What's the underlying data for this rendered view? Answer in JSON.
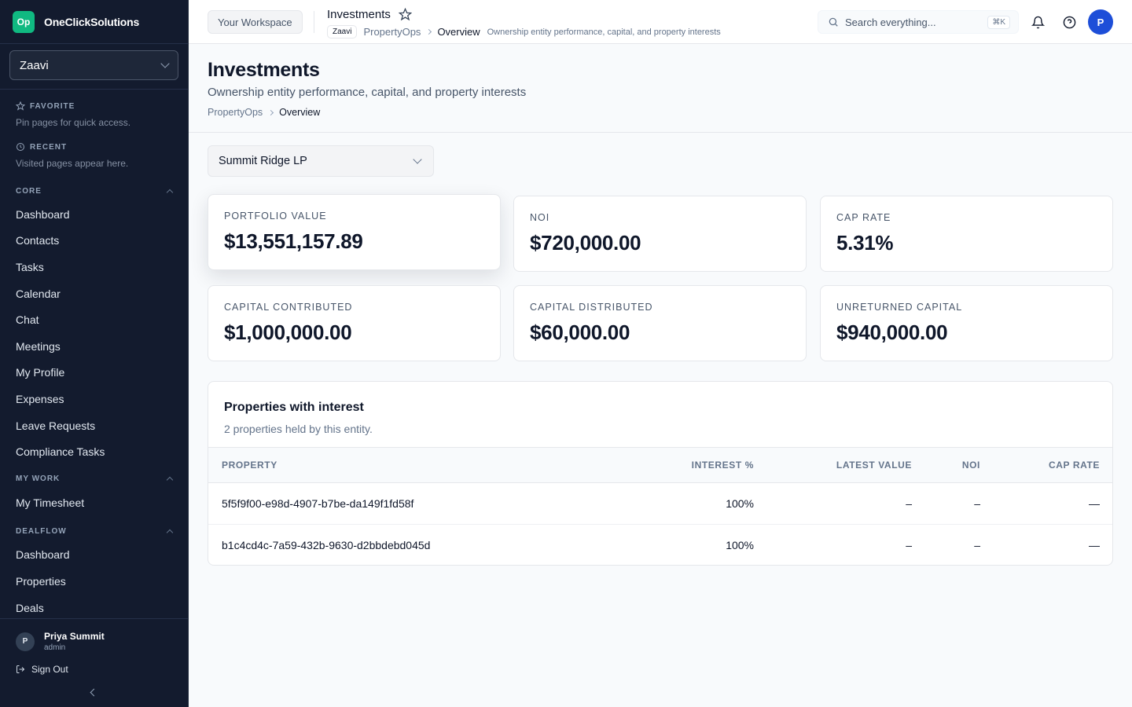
{
  "brand": {
    "logo_text": "Op",
    "name": "OneClickSolutions"
  },
  "org_select": {
    "value": "Zaavi"
  },
  "sidebar": {
    "favorite": {
      "title": "FAVORITE",
      "hint": "Pin pages for quick access."
    },
    "recent": {
      "title": "RECENT",
      "hint": "Visited pages appear here."
    },
    "core": {
      "title": "CORE",
      "items": [
        "Dashboard",
        "Contacts",
        "Tasks",
        "Calendar",
        "Chat",
        "Meetings",
        "My Profile",
        "Expenses",
        "Leave Requests",
        "Compliance Tasks"
      ]
    },
    "my_work": {
      "title": "MY WORK",
      "items": [
        "My Timesheet"
      ]
    },
    "dealflow": {
      "title": "DEALFLOW",
      "items": [
        "Dashboard",
        "Properties",
        "Deals"
      ]
    },
    "user": {
      "initial": "P",
      "name": "Priya Summit",
      "role": "admin"
    },
    "sign_out": "Sign Out"
  },
  "topbar": {
    "workspace": "Your Workspace",
    "title": "Investments",
    "org_badge": "Zaavi",
    "crumb_1": "PropertyOps",
    "crumb_2": "Overview",
    "description": "Ownership entity performance, capital, and property interests",
    "search_placeholder": "Search everything...",
    "shortcut": "⌘K",
    "avatar_initial": "P"
  },
  "page": {
    "title": "Investments",
    "subtitle": "Ownership entity performance, capital, and property interests",
    "crumb_1": "PropertyOps",
    "crumb_2": "Overview"
  },
  "entity_select": {
    "value": "Summit Ridge LP"
  },
  "metrics": [
    {
      "label": "PORTFOLIO VALUE",
      "value": "$13,551,157.89"
    },
    {
      "label": "NOI",
      "value": "$720,000.00"
    },
    {
      "label": "CAP RATE",
      "value": "5.31%"
    },
    {
      "label": "CAPITAL CONTRIBUTED",
      "value": "$1,000,000.00"
    },
    {
      "label": "CAPITAL DISTRIBUTED",
      "value": "$60,000.00"
    },
    {
      "label": "UNRETURNED CAPITAL",
      "value": "$940,000.00"
    }
  ],
  "properties": {
    "title": "Properties with interest",
    "subtitle": "2 properties held by this entity.",
    "columns": [
      "PROPERTY",
      "INTEREST %",
      "LATEST VALUE",
      "NOI",
      "CAP RATE"
    ],
    "rows": [
      [
        "5f5f9f00-e98d-4907-b7be-da149f1fd58f",
        "100%",
        "–",
        "–",
        "—"
      ],
      [
        "b1c4cd4c-7a59-432b-9630-d2bbdebd045d",
        "100%",
        "–",
        "–",
        "—"
      ]
    ]
  }
}
